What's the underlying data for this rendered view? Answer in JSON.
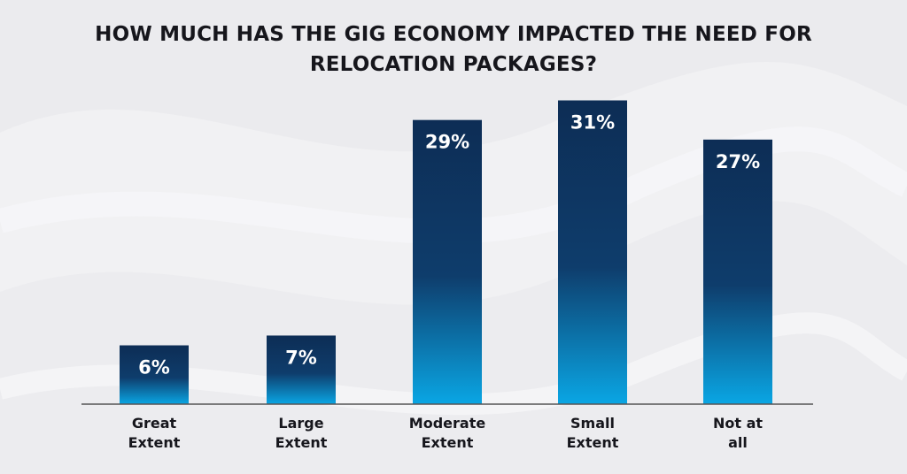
{
  "title_lines": [
    "HOW MUCH HAS THE GIG ECONOMY IMPACTED THE NEED FOR",
    "RELOCATION PACKAGES?"
  ],
  "colors": {
    "bar_top": "#0d2d55",
    "bar_bottom": "#0aa6e4",
    "baseline": "#555555",
    "text": "#16161c"
  },
  "chart_data": {
    "type": "bar",
    "title": "HOW MUCH HAS THE GIG ECONOMY IMPACTED THE NEED FOR RELOCATION PACKAGES?",
    "categories": [
      [
        "Great",
        "Extent"
      ],
      [
        "Large",
        "Extent"
      ],
      [
        "Moderate",
        "Extent"
      ],
      [
        "Small",
        "Extent"
      ],
      [
        "Not at",
        "all"
      ]
    ],
    "values": [
      6,
      7,
      29,
      31,
      27
    ],
    "value_labels": [
      "6%",
      "7%",
      "29%",
      "31%",
      "27%"
    ],
    "unit": "%",
    "ylim": [
      0,
      36
    ],
    "grid": false,
    "legend": "none"
  }
}
